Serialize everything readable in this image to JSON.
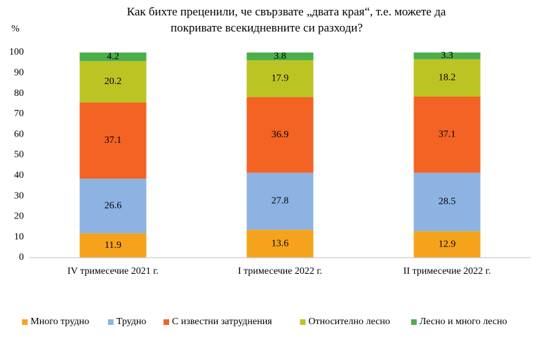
{
  "chart_data": {
    "type": "stacked_bar",
    "title": [
      "Как бихте преценили,  че свързвате „двата края“, т.е. можете да",
      "покривате всекидневните си разходи?"
    ],
    "y_label": "%",
    "categories": [
      "IV тримесечие 2021 г.",
      "I тримесечие 2022 г.",
      "II тримесечие 2022 г."
    ],
    "series": [
      {
        "name": "Много трудно",
        "color": "#f5a31c",
        "values": [
          11.9,
          13.6,
          12.9
        ]
      },
      {
        "name": "Трудно",
        "color": "#8db3e2",
        "values": [
          26.6,
          27.8,
          28.5
        ]
      },
      {
        "name": "С известни затруднения",
        "color": "#f26324",
        "values": [
          37.1,
          36.9,
          37.1
        ]
      },
      {
        "name": "Относително лесно",
        "color": "#bcc423",
        "values": [
          20.2,
          17.9,
          18.2
        ]
      },
      {
        "name": "Лесно и много лесно",
        "color": "#4cae4c",
        "values": [
          4.2,
          3.8,
          3.3
        ]
      }
    ],
    "ylim": [
      0,
      100
    ],
    "yticks": [
      0,
      10,
      20,
      30,
      40,
      50,
      60,
      70,
      80,
      90,
      100
    ],
    "grid": false,
    "legend": "bottom"
  }
}
